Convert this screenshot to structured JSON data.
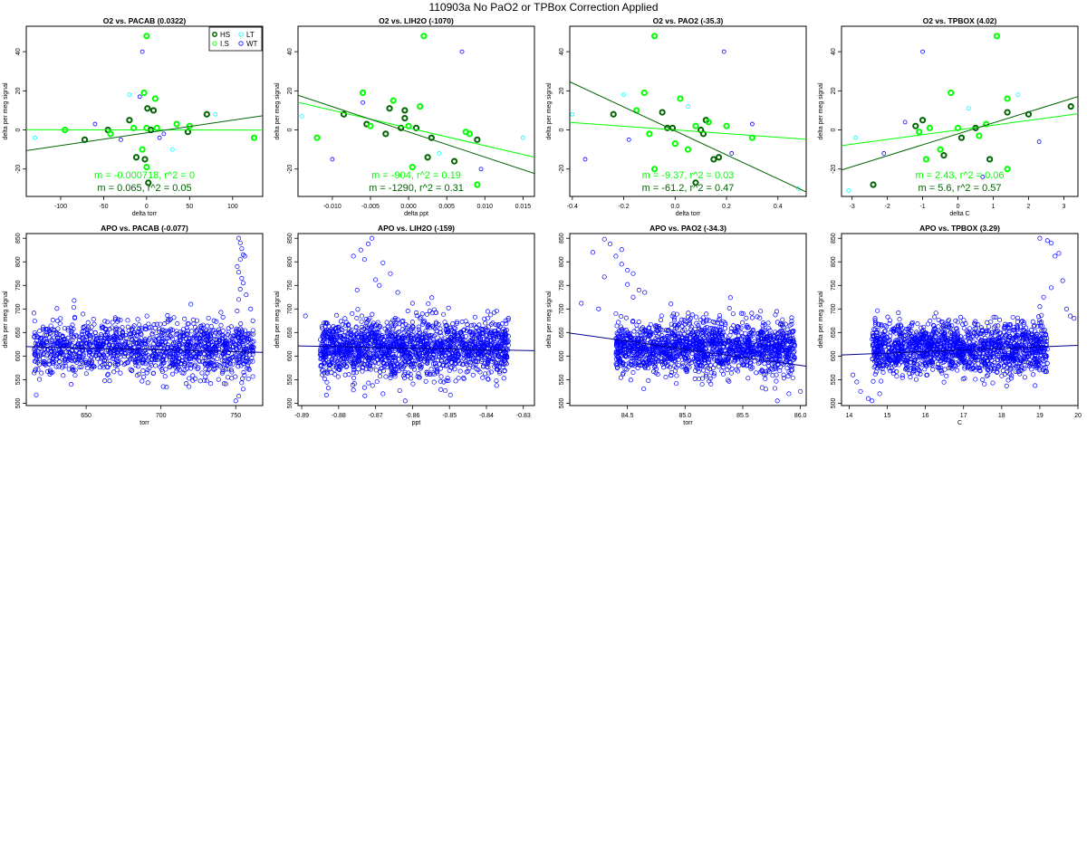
{
  "page_title": "110903a   No PaO2 or TPBox Correction Applied",
  "legend": {
    "entries": [
      {
        "label": "HS",
        "color": "#006400",
        "marker": "thick-circle"
      },
      {
        "label": "LT",
        "color": "#00ffff",
        "marker": "circle"
      },
      {
        "label": "I.S",
        "color": "#00ff00",
        "marker": "circle"
      },
      {
        "label": "WT",
        "color": "#0000ff",
        "marker": "circle"
      }
    ]
  },
  "colors": {
    "HS": "#006400",
    "IS": "#00ff00",
    "LT": "#00ffff",
    "WT": "#0000ff",
    "APO": "#0000ff",
    "fit_dark": "#006400",
    "fit_light": "#00ff00"
  },
  "chart_data": [
    {
      "type": "scatter",
      "title": "O2 vs. PACAB (0.0322)",
      "xlabel": "delta torr",
      "ylabel": "delta per meg signal",
      "xlim": [
        -140,
        135
      ],
      "ylim": [
        -34,
        53
      ],
      "xticks": [
        -100,
        -50,
        0,
        50,
        100
      ],
      "xtick_labels": [
        "-100",
        "-50",
        "0",
        "50",
        "100"
      ],
      "yticks": [
        -20,
        0,
        20,
        40
      ],
      "ytick_labels": [
        "-20",
        "0",
        "20",
        "40"
      ],
      "fit_lines": [
        {
          "name": "fit-light",
          "slope": -0.000718,
          "intercept": 0,
          "color": "#00ff00"
        },
        {
          "name": "fit-dark",
          "slope": 0.065,
          "intercept": -1.5,
          "color": "#006400"
        }
      ],
      "annotations": [
        {
          "text": "m = -0.000718, r^2 = 0",
          "color": "#00ff00"
        },
        {
          "text": "m = 0.065, r^2 = 0.05",
          "color": "#006400"
        }
      ],
      "show_legend": true
    },
    {
      "type": "scatter",
      "title": "O2 vs. LIH2O (-1070)",
      "xlabel": "delta ppt",
      "ylabel": "delta per meg signal",
      "xlim": [
        -0.0145,
        0.0165
      ],
      "ylim": [
        -34,
        53
      ],
      "xticks": [
        -0.01,
        -0.005,
        0,
        0.005,
        0.01,
        0.015
      ],
      "xtick_labels": [
        "-0.010",
        "-0.005",
        "0.000",
        "0.005",
        "0.010",
        "0.015"
      ],
      "yticks": [
        -20,
        0,
        20,
        40
      ],
      "ytick_labels": [
        "-20",
        "0",
        "20",
        "40"
      ],
      "fit_lines": [
        {
          "name": "fit-light",
          "slope": -904,
          "intercept": 1,
          "color": "#00ff00"
        },
        {
          "name": "fit-dark",
          "slope": -1290,
          "intercept": -1,
          "color": "#006400"
        }
      ],
      "annotations": [
        {
          "text": "m = -904, r^2 = 0.19",
          "color": "#00ff00"
        },
        {
          "text": "m = -1290, r^2 = 0.31",
          "color": "#006400"
        }
      ],
      "show_legend": false
    },
    {
      "type": "scatter",
      "title": "O2 vs. PAO2 (-35.3)",
      "xlabel": "delta torr",
      "ylabel": "delta per meg signal",
      "xlim": [
        -0.41,
        0.51
      ],
      "ylim": [
        -34,
        53
      ],
      "xticks": [
        -0.4,
        -0.2,
        0,
        0.2,
        0.4
      ],
      "xtick_labels": [
        "-0.4",
        "-0.2",
        "0.0",
        "0.2",
        "0.4"
      ],
      "yticks": [
        -20,
        0,
        20,
        40
      ],
      "ytick_labels": [
        "-20",
        "0",
        "20",
        "40"
      ],
      "fit_lines": [
        {
          "name": "fit-light",
          "slope": -9.37,
          "intercept": 0,
          "color": "#00ff00"
        },
        {
          "name": "fit-dark",
          "slope": -61.2,
          "intercept": -0.5,
          "color": "#006400"
        }
      ],
      "annotations": [
        {
          "text": "m = -9.37, r^2 = 0.03",
          "color": "#00ff00"
        },
        {
          "text": "m = -61.2, r^2 = 0.47",
          "color": "#006400"
        }
      ],
      "show_legend": false
    },
    {
      "type": "scatter",
      "title": "O2 vs. TPBOX (4.02)",
      "xlabel": "delta C",
      "ylabel": "delta per meg signal",
      "xlim": [
        -3.3,
        3.4
      ],
      "ylim": [
        -34,
        53
      ],
      "xticks": [
        -3,
        -2,
        -1,
        0,
        1,
        2,
        3
      ],
      "xtick_labels": [
        "-3",
        "-2",
        "-1",
        "0",
        "1",
        "2",
        "3"
      ],
      "yticks": [
        -20,
        0,
        20,
        40
      ],
      "ytick_labels": [
        "-20",
        "0",
        "20",
        "40"
      ],
      "fit_lines": [
        {
          "name": "fit-light",
          "slope": 2.43,
          "intercept": 0,
          "color": "#00ff00"
        },
        {
          "name": "fit-dark",
          "slope": 5.6,
          "intercept": -2,
          "color": "#006400"
        }
      ],
      "annotations": [
        {
          "text": "m = 2.43, r^2 = 0.06",
          "color": "#00ff00"
        },
        {
          "text": "m = 5.6, r^2 = 0.57",
          "color": "#006400"
        }
      ],
      "show_legend": false
    },
    {
      "type": "scatter",
      "title": "APO vs. PACAB (-0.077)",
      "xlabel": "torr",
      "ylabel": "delta per meg signal",
      "xlim": [
        610,
        768
      ],
      "ylim": [
        495,
        860
      ],
      "xticks": [
        650,
        700,
        750
      ],
      "xtick_labels": [
        "650",
        "700",
        "750"
      ],
      "yticks": [
        500,
        550,
        600,
        650,
        700,
        750,
        800,
        850
      ],
      "ytick_labels": [
        "500",
        "550",
        "600",
        "650",
        "700",
        "750",
        "800",
        "850"
      ],
      "fit_lines": [
        {
          "name": "fit-apo",
          "slope": -0.077,
          "intercept": 667,
          "color": "#00008b"
        }
      ],
      "cloud": {
        "x_range": [
          615,
          762
        ],
        "y_center": 615,
        "y_spread": 28,
        "count": 1400
      },
      "outliers": [
        [
          752,
          850
        ],
        [
          753,
          840
        ],
        [
          754,
          828
        ],
        [
          755,
          815
        ],
        [
          756,
          812
        ],
        [
          753,
          805
        ],
        [
          751,
          790
        ],
        [
          752,
          778
        ],
        [
          754,
          765
        ],
        [
          755,
          755
        ],
        [
          753,
          742
        ],
        [
          757,
          730
        ],
        [
          752,
          720
        ],
        [
          760,
          700
        ],
        [
          642,
          718
        ],
        [
          720,
          710
        ],
        [
          752,
          515
        ],
        [
          750,
          505
        ],
        [
          755,
          530
        ],
        [
          640,
          540
        ]
      ],
      "show_legend": false
    },
    {
      "type": "scatter",
      "title": "APO vs. LIH2O (-159)",
      "xlabel": "ppt",
      "ylabel": "delta per meg signal",
      "xlim": [
        -0.891,
        -0.827
      ],
      "ylim": [
        495,
        860
      ],
      "xticks": [
        -0.89,
        -0.88,
        -0.87,
        -0.86,
        -0.85,
        -0.84,
        -0.83
      ],
      "xtick_labels": [
        "-0.89",
        "-0.88",
        "-0.87",
        "-0.86",
        "-0.85",
        "-0.84",
        "-0.83"
      ],
      "yticks": [
        500,
        550,
        600,
        650,
        700,
        750,
        800,
        850
      ],
      "ytick_labels": [
        "500",
        "550",
        "600",
        "650",
        "700",
        "750",
        "800",
        "850"
      ],
      "fit_lines": [
        {
          "name": "fit-apo",
          "slope": -159,
          "intercept": 480,
          "color": "#00008b"
        }
      ],
      "cloud": {
        "x_range": [
          -0.885,
          -0.834
        ],
        "y_center": 617,
        "y_spread": 30,
        "count": 1700
      },
      "outliers": [
        [
          -0.871,
          850
        ],
        [
          -0.872,
          838
        ],
        [
          -0.874,
          825
        ],
        [
          -0.876,
          812
        ],
        [
          -0.873,
          805
        ],
        [
          -0.868,
          798
        ],
        [
          -0.866,
          775
        ],
        [
          -0.87,
          762
        ],
        [
          -0.869,
          750
        ],
        [
          -0.875,
          740
        ],
        [
          -0.864,
          735
        ],
        [
          -0.86,
          712
        ],
        [
          -0.889,
          685
        ],
        [
          -0.837,
          665
        ],
        [
          -0.862,
          505
        ],
        [
          -0.868,
          520
        ],
        [
          -0.876,
          528
        ]
      ],
      "show_legend": false
    },
    {
      "type": "scatter",
      "title": "APO vs. PAO2 (-34.3)",
      "xlabel": "torr",
      "ylabel": "delta per meg signal",
      "xlim": [
        84.0,
        86.05
      ],
      "ylim": [
        495,
        860
      ],
      "xticks": [
        84.5,
        85.0,
        85.5,
        86.0
      ],
      "xtick_labels": [
        "84.5",
        "85.0",
        "85.5",
        "86.0"
      ],
      "yticks": [
        500,
        550,
        600,
        650,
        700,
        750,
        800,
        850
      ],
      "ytick_labels": [
        "500",
        "550",
        "600",
        "650",
        "700",
        "750",
        "800",
        "850"
      ],
      "fit_lines": [
        {
          "name": "fit-apo",
          "slope": -34.3,
          "intercept": 3530,
          "color": "#00008b"
        }
      ],
      "cloud": {
        "x_range": [
          84.4,
          85.95
        ],
        "y_center": 618,
        "y_spread": 28,
        "count": 1600
      },
      "outliers": [
        [
          84.3,
          848
        ],
        [
          84.35,
          838
        ],
        [
          84.45,
          826
        ],
        [
          84.2,
          820
        ],
        [
          84.4,
          812
        ],
        [
          84.45,
          795
        ],
        [
          84.5,
          782
        ],
        [
          84.55,
          775
        ],
        [
          84.3,
          768
        ],
        [
          84.5,
          752
        ],
        [
          84.6,
          740
        ],
        [
          84.65,
          735
        ],
        [
          84.1,
          712
        ],
        [
          84.25,
          700
        ],
        [
          84.4,
          690
        ],
        [
          84.55,
          725
        ],
        [
          85.9,
          520
        ],
        [
          85.8,
          505
        ],
        [
          86.0,
          525
        ],
        [
          85.7,
          530
        ]
      ],
      "show_legend": false
    },
    {
      "type": "scatter",
      "title": "APO vs. TPBOX (3.29)",
      "xlabel": "C",
      "ylabel": "delta per meg signal",
      "xlim": [
        13.8,
        20.0
      ],
      "ylim": [
        495,
        860
      ],
      "xticks": [
        14,
        15,
        16,
        17,
        18,
        19,
        20
      ],
      "xtick_labels": [
        "14",
        "15",
        "16",
        "17",
        "18",
        "19",
        "20"
      ],
      "yticks": [
        500,
        550,
        600,
        650,
        700,
        750,
        800,
        850
      ],
      "ytick_labels": [
        "500",
        "550",
        "600",
        "650",
        "700",
        "750",
        "800",
        "850"
      ],
      "fit_lines": [
        {
          "name": "fit-apo",
          "slope": 3.29,
          "intercept": 557,
          "color": "#00008b"
        }
      ],
      "cloud": {
        "x_range": [
          14.6,
          19.2
        ],
        "y_center": 616,
        "y_spread": 27,
        "count": 1600
      },
      "outliers": [
        [
          19.0,
          850
        ],
        [
          19.2,
          845
        ],
        [
          19.3,
          840
        ],
        [
          19.5,
          818
        ],
        [
          19.4,
          812
        ],
        [
          19.6,
          760
        ],
        [
          19.3,
          745
        ],
        [
          19.1,
          725
        ],
        [
          19.0,
          705
        ],
        [
          19.7,
          700
        ],
        [
          19.8,
          685
        ],
        [
          19.9,
          680
        ],
        [
          14.2,
          545
        ],
        [
          14.3,
          525
        ],
        [
          14.5,
          510
        ],
        [
          14.6,
          505
        ],
        [
          14.8,
          520
        ],
        [
          14.1,
          560
        ]
      ],
      "show_legend": false
    }
  ]
}
